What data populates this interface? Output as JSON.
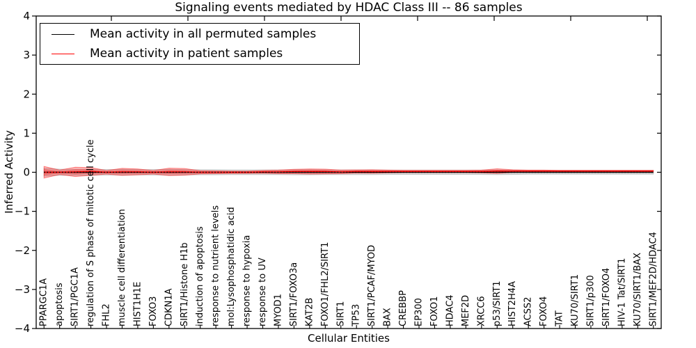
{
  "figure": {
    "title": "Signaling events mediated by HDAC Class III -- 86 samples",
    "xlabel": "Cellular Entities",
    "ylabel": "Inferred Activity",
    "sample_count_shown_in_title": "86 samples"
  },
  "legend": {
    "position": "upper left",
    "items": [
      {
        "label": "Mean activity in all permuted samples",
        "color": "#000000"
      },
      {
        "label": "Mean activity in patient samples",
        "color": "#ff0000"
      }
    ]
  },
  "chart_data": {
    "type": "line",
    "title": "Signaling events mediated by HDAC Class III -- 86 samples",
    "xlabel": "Cellular Entities",
    "ylabel": "Inferred Activity",
    "ylim": [
      -4,
      4
    ],
    "yticks": [
      4,
      3,
      2,
      1,
      0,
      -1,
      -2,
      -3,
      -4
    ],
    "grid": false,
    "legend_position": "upper left",
    "categories": [
      "PPARGC1A",
      "apoptosis",
      "SIRT1/PGC1A",
      "regulation of S phase of mitotic cell cycle",
      "FHL2",
      "muscle cell differentiation",
      "HIST1H1E",
      "FOXO3",
      "CDKN1A",
      "SIRT1/Histone H1b",
      "induction of apoptosis",
      "response to nutrient levels",
      "mol:Lysophosphatidic acid",
      "response to hypoxia",
      "response to UV",
      "MYOD1",
      "SIRT1/FOXO3a",
      "KAT2B",
      "FOXO1/FHL2/SIRT1",
      "SIRT1",
      "TP53",
      "SIRT1/PCAF/MYOD",
      "BAX",
      "CREBBP",
      "EP300",
      "FOXO1",
      "HDAC4",
      "MEF2D",
      "XRCC6",
      "p53/SIRT1",
      "HIST2H4A",
      "ACSS2",
      "FOXO4",
      "TAT",
      "KU70/SIRT1",
      "SIRT1/p300",
      "SIRT1/FOXO4",
      "HIV-1 Tat/SIRT1",
      "KU70/SIRT1/BAX",
      "SIRT1/MEF2D/HDAC4"
    ],
    "series": [
      {
        "name": "Mean activity in all permuted samples",
        "color": "#000000",
        "values": [
          0,
          0,
          0,
          0,
          0,
          0,
          0,
          0,
          0,
          0,
          0,
          0,
          0,
          0,
          0,
          0,
          0,
          0,
          0,
          0,
          0,
          0,
          0,
          0,
          0,
          0,
          0,
          0,
          0,
          0,
          0,
          0,
          0,
          0,
          0,
          0,
          0,
          0,
          0,
          0
        ]
      },
      {
        "name": "Mean activity in patient samples",
        "color": "#ff0000",
        "values": [
          0,
          0,
          0.01,
          0.02,
          0,
          0.01,
          0.01,
          0,
          0.01,
          0.01,
          0,
          0,
          0,
          0,
          0.01,
          0.01,
          0.02,
          0.02,
          0.02,
          0.01,
          0.02,
          0.02,
          0.02,
          0.02,
          0.02,
          0.02,
          0.02,
          0.02,
          0.02,
          0.03,
          0.03,
          0.03,
          0.03,
          0.03,
          0.03,
          0.03,
          0.03,
          0.03,
          0.03,
          0.03
        ]
      }
    ],
    "bands": [
      {
        "name": "std of activity in all permuted samples",
        "color": "rgba(0,0,0,0.13)",
        "edge_color": "rgba(0,0,0,0.18)",
        "half_widths": [
          0.1,
          0.08,
          0.075,
          0.08,
          0.07,
          0.075,
          0.07,
          0.07,
          0.075,
          0.07,
          0.065,
          0.065,
          0.06,
          0.06,
          0.06,
          0.06,
          0.065,
          0.065,
          0.06,
          0.06,
          0.06,
          0.06,
          0.055,
          0.055,
          0.055,
          0.055,
          0.055,
          0.055,
          0.055,
          0.06,
          0.055,
          0.05,
          0.05,
          0.05,
          0.05,
          0.05,
          0.05,
          0.05,
          0.05,
          0.05
        ]
      },
      {
        "name": "std of activity in patient samples",
        "color": "rgba(255,0,0,0.28)",
        "edge_color": "rgba(255,0,0,0.45)",
        "half_widths": [
          0.15,
          0.055,
          0.12,
          0.1,
          0.045,
          0.09,
          0.075,
          0.045,
          0.095,
          0.085,
          0.04,
          0.035,
          0.03,
          0.03,
          0.035,
          0.045,
          0.055,
          0.065,
          0.06,
          0.045,
          0.04,
          0.045,
          0.035,
          0.03,
          0.03,
          0.03,
          0.03,
          0.03,
          0.035,
          0.06,
          0.035,
          0.025,
          0.025,
          0.02,
          0.02,
          0.02,
          0.02,
          0.02,
          0.02,
          0.02
        ]
      }
    ],
    "zero_reference_line": {
      "value": 0,
      "style": "dotted",
      "color": "#000000"
    }
  }
}
